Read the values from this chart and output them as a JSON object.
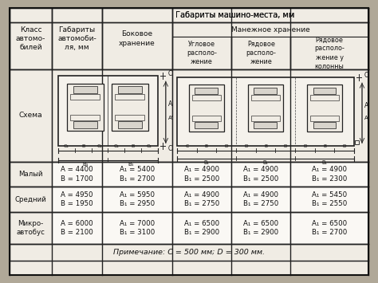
{
  "title": "Габариты машино-места, мм",
  "subtitle": "Манежное хранение",
  "bg_color": "#b0a898",
  "table_bg": "#f0ece4",
  "cell_bg": "#f0ece4",
  "header_shade": "#e0dcd4",
  "border_color": "#222222",
  "text_color": "#111111",
  "note": "Примечание: C = 500 мм; D = 300 мм.",
  "col_headers_row1": [
    "Класс\nавтомо-\nбилей",
    "Габариты\nавтомоби-\nля, мм",
    "Боковое\nхранение"
  ],
  "col_headers_manege": [
    "Угловое\nрасполо-\nложение",
    "Рядовое\nрасполо-\nжение",
    "Рядовое\nрасполо-\nжение у\nколонны"
  ],
  "rows": [
    {
      "class": "Малый",
      "dims": "A = 4400\nB = 1700",
      "side": "A₁ = 5400\nB₁ = 2700",
      "angular": "A₁ = 4900\nB₁ = 2500",
      "rowpark": "A₁ = 4900\nB₁ = 2300"
    },
    {
      "class": "Средний",
      "dims": "A = 4950\nB = 1950",
      "side": "A₁ = 5950\nB₁ = 2950",
      "angular": "A₁ = 4900\nB₁ = 2750",
      "rowpark": "A₁ = 5450\nB₁ = 2550"
    },
    {
      "class": "Микро-\nавтобус",
      "dims": "A = 6000\nB = 2100",
      "side": "A₁ = 7000\nB₁ = 3100",
      "angular": "A₁ = 6500\nB₁ = 2900",
      "rowpark": "A₁ = 6500\nB₁ = 2700"
    }
  ],
  "fig_width": 4.74,
  "fig_height": 3.55,
  "dpi": 100
}
